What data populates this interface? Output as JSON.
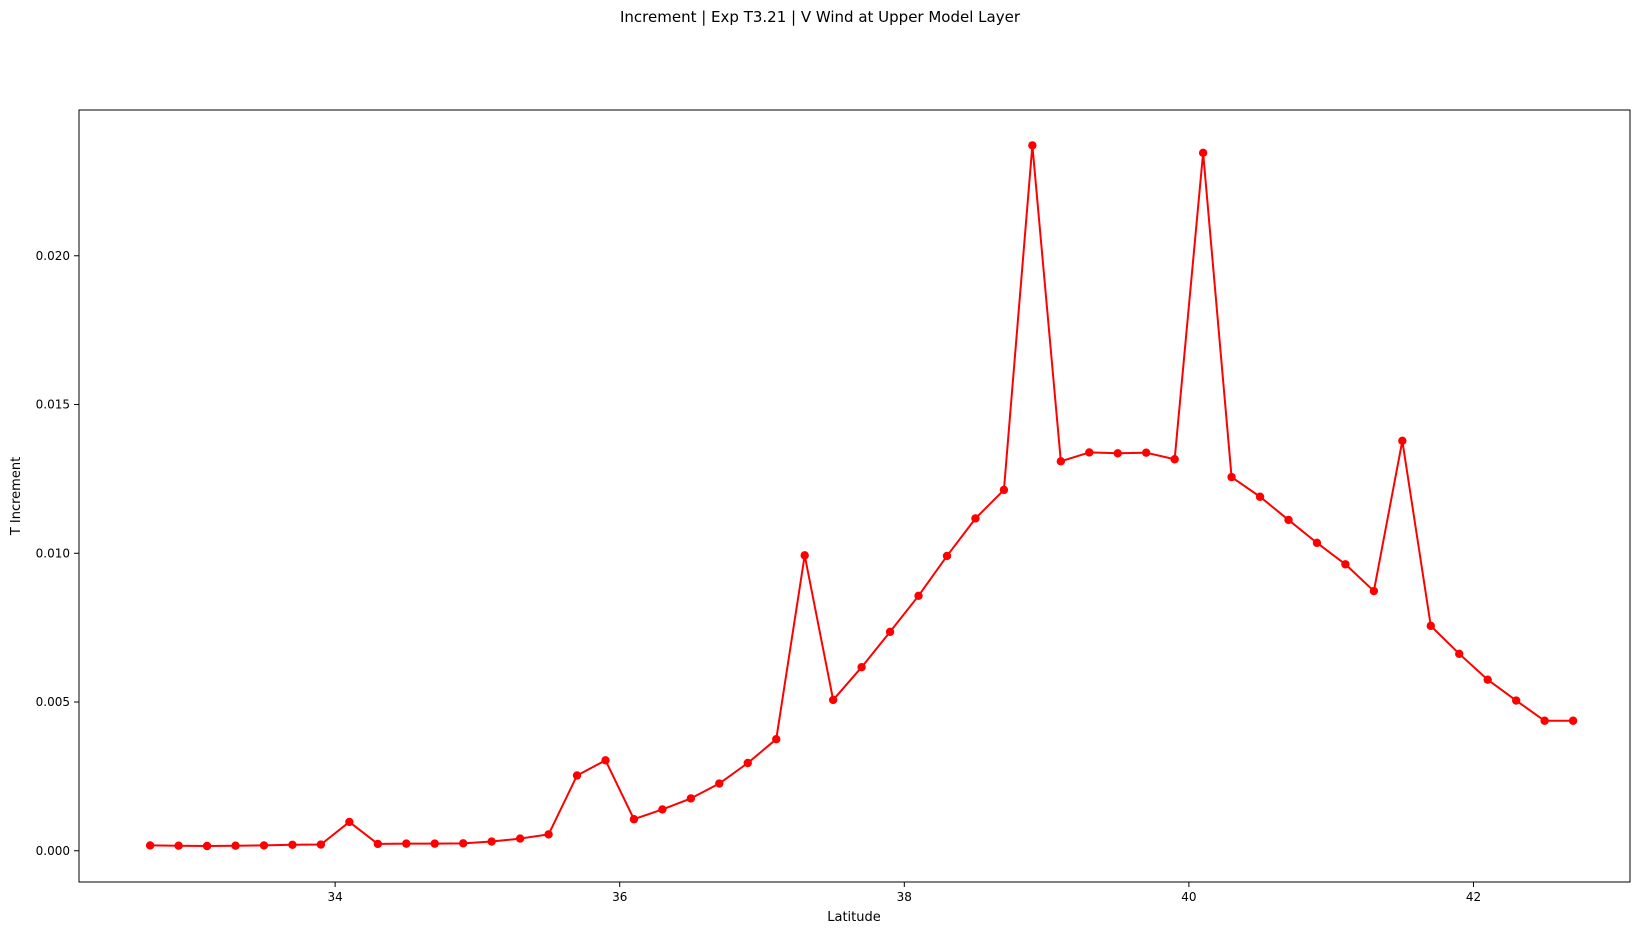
{
  "chart_data": {
    "type": "line",
    "title": "Increment | Exp T3.21 | V Wind at Upper Model Layer",
    "xlabel": "Latitude",
    "ylabel": "T Increment",
    "xlim": [
      32.2,
      43.1
    ],
    "ylim": [
      -0.00105,
      0.0249
    ],
    "xticks": [
      34,
      36,
      38,
      40,
      42
    ],
    "xtick_labels": [
      "34",
      "36",
      "38",
      "40",
      "42"
    ],
    "yticks": [
      0.0,
      0.005,
      0.01,
      0.015,
      0.02
    ],
    "ytick_labels": [
      "0.000",
      "0.005",
      "0.010",
      "0.015",
      "0.020"
    ],
    "grid": false,
    "legend": false,
    "color": "#ff0000",
    "marker": "circle",
    "series": [
      {
        "x": [
          32.7,
          32.9,
          33.1,
          33.3,
          33.5,
          33.7,
          33.9,
          34.1,
          34.3,
          34.5,
          34.7,
          34.9,
          35.1,
          35.3,
          35.5,
          35.7,
          35.9,
          36.1,
          36.3,
          36.5,
          36.7,
          36.9,
          37.1,
          37.3,
          37.5,
          37.7,
          37.9,
          38.1,
          38.3,
          38.5,
          38.7,
          38.9,
          39.1,
          39.3,
          39.5,
          39.7,
          39.9,
          40.1,
          40.3,
          40.5,
          40.7,
          40.9,
          41.1,
          41.3,
          41.5,
          41.7,
          41.9,
          42.1,
          42.3,
          42.5,
          42.7
        ],
        "y": [
          0.00018,
          0.00017,
          0.00016,
          0.00017,
          0.00018,
          0.0002,
          0.00021,
          0.00097,
          0.00023,
          0.00024,
          0.00024,
          0.00025,
          0.00031,
          0.00041,
          0.00055,
          0.00253,
          0.00304,
          0.00106,
          0.00139,
          0.00176,
          0.00226,
          0.00295,
          0.00375,
          0.00993,
          0.00507,
          0.00617,
          0.00736,
          0.00857,
          0.00991,
          0.01117,
          0.01213,
          0.02371,
          0.01309,
          0.01339,
          0.01336,
          0.01338,
          0.01316,
          0.02346,
          0.01256,
          0.0119,
          0.01112,
          0.01035,
          0.00963,
          0.00873,
          0.01378,
          0.00756,
          0.00662,
          0.00575,
          0.00505,
          0.00437,
          0.00437
        ]
      }
    ]
  }
}
